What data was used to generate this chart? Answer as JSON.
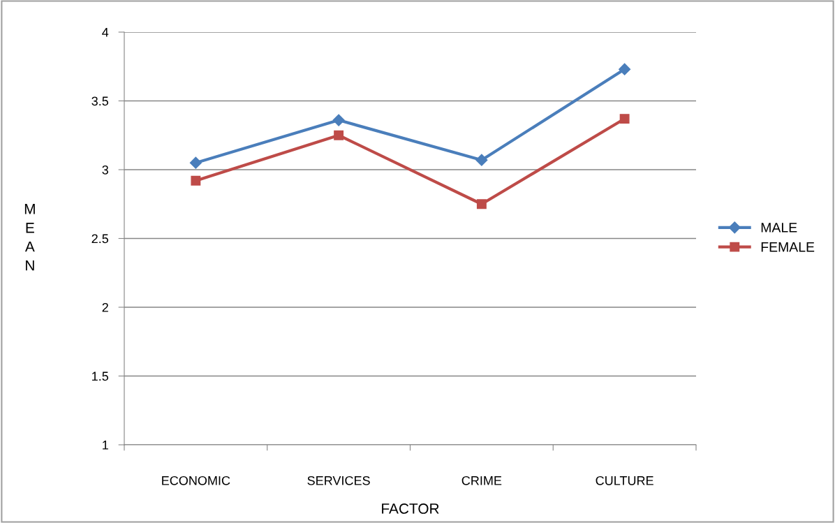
{
  "chart_data": {
    "type": "line",
    "xlabel": "FACTOR",
    "ylabel": "MEAN",
    "categories": [
      "ECONOMIC",
      "SERVICES",
      "CRIME",
      "CULTURE"
    ],
    "series": [
      {
        "name": "MALE",
        "color": "#4a7ebb",
        "marker": "diamond",
        "values": [
          3.05,
          3.36,
          3.07,
          3.73
        ]
      },
      {
        "name": "FEMALE",
        "color": "#be4b48",
        "marker": "square",
        "values": [
          2.92,
          3.25,
          2.75,
          3.37
        ]
      }
    ],
    "ylim": [
      1,
      4
    ],
    "yticks": [
      1,
      1.5,
      2,
      2.5,
      3,
      3.5,
      4
    ],
    "grid": "y",
    "legend": "right",
    "line_style": "solid"
  }
}
